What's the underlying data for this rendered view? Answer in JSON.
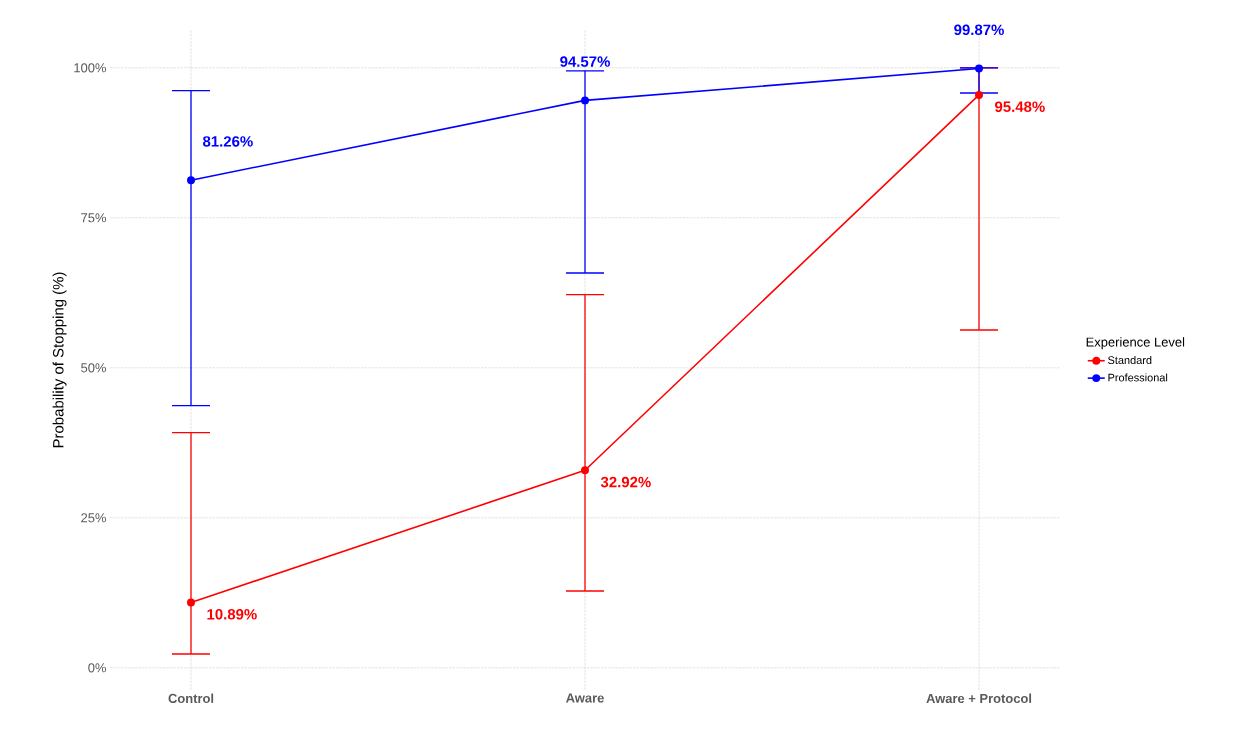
{
  "chart_data": {
    "type": "line",
    "ylabel": "Probability of Stopping (%)",
    "legend_title": "Experience Level",
    "categories": [
      "Control",
      "Aware",
      "Aware + Protocol"
    ],
    "series": [
      {
        "name": "Standard",
        "color": "#ff0000",
        "values": [
          10.89,
          32.92,
          95.48
        ],
        "value_labels": [
          "10.89%",
          "32.92%",
          "95.48%"
        ],
        "errors": [
          [
            2.3,
            39.2
          ],
          [
            12.8,
            62.2
          ],
          [
            56.3,
            100
          ]
        ]
      },
      {
        "name": "Professional",
        "color": "#0000ff",
        "values": [
          81.26,
          94.57,
          99.87
        ],
        "value_labels": [
          "81.26%",
          "94.57%",
          "99.87%"
        ],
        "errors": [
          [
            43.7,
            96.2
          ],
          [
            65.8,
            99.5
          ],
          [
            95.8,
            100
          ]
        ]
      }
    ],
    "ylim": [
      -3.7,
      106.3
    ],
    "yticks": [
      {
        "value": 0,
        "label": "0%"
      },
      {
        "value": 25,
        "label": "25%"
      },
      {
        "value": 50,
        "label": "50%"
      },
      {
        "value": 75,
        "label": "75%"
      },
      {
        "value": 100,
        "label": "100%"
      }
    ],
    "grid": true,
    "legend": "right",
    "marker": "circle",
    "line_style": "solid"
  }
}
